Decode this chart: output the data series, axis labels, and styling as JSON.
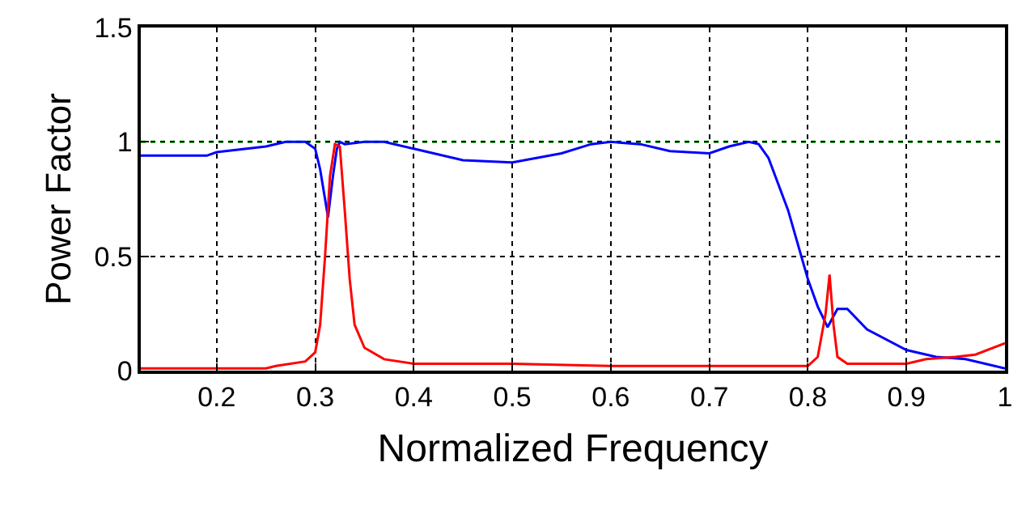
{
  "chart_data": {
    "type": "line",
    "xlabel": "Normalized Frequency",
    "ylabel": "Power Factor",
    "xlim": [
      0.123,
      1
    ],
    "xticks": [
      0.2,
      0.3,
      0.4,
      0.5,
      0.6,
      0.7,
      0.8,
      0.9,
      1
    ],
    "ylim": [
      0,
      1.5
    ],
    "yticks": [
      0,
      0.5,
      1,
      1.5
    ],
    "grid": true,
    "line_style": "solid",
    "marker": "none",
    "ref_lines": [
      {
        "axis": "y",
        "value": 1,
        "label": null,
        "color": "#00cc00",
        "line_style": "dotted"
      }
    ],
    "series": [
      {
        "color": "#0000ff",
        "x": [
          0.123,
          0.19,
          0.2,
          0.25,
          0.27,
          0.29,
          0.3,
          0.305,
          0.31,
          0.313,
          0.318,
          0.322,
          0.325,
          0.33,
          0.35,
          0.37,
          0.4,
          0.45,
          0.5,
          0.55,
          0.58,
          0.6,
          0.63,
          0.66,
          0.7,
          0.72,
          0.74,
          0.75,
          0.76,
          0.78,
          0.8,
          0.81,
          0.82,
          0.83,
          0.84,
          0.86,
          0.9,
          0.93,
          0.96,
          0.98,
          1.0
        ],
        "values": [
          0.94,
          0.94,
          0.955,
          0.98,
          1.0,
          1.0,
          0.97,
          0.88,
          0.75,
          0.67,
          0.85,
          0.97,
          1.0,
          0.99,
          1.0,
          1.0,
          0.97,
          0.92,
          0.91,
          0.95,
          0.99,
          1.0,
          0.99,
          0.96,
          0.95,
          0.98,
          1.0,
          0.99,
          0.93,
          0.7,
          0.4,
          0.28,
          0.19,
          0.27,
          0.27,
          0.18,
          0.09,
          0.06,
          0.05,
          0.03,
          0.01
        ]
      },
      {
        "color": "#ff0000",
        "x": [
          0.123,
          0.25,
          0.26,
          0.29,
          0.3,
          0.305,
          0.31,
          0.315,
          0.32,
          0.325,
          0.33,
          0.335,
          0.34,
          0.35,
          0.37,
          0.4,
          0.5,
          0.6,
          0.7,
          0.8,
          0.81,
          0.818,
          0.822,
          0.826,
          0.83,
          0.84,
          0.9,
          0.92,
          0.95,
          0.97,
          1.0
        ],
        "values": [
          0.01,
          0.01,
          0.02,
          0.04,
          0.08,
          0.2,
          0.5,
          0.85,
          0.99,
          0.98,
          0.7,
          0.4,
          0.2,
          0.1,
          0.05,
          0.03,
          0.03,
          0.02,
          0.02,
          0.02,
          0.06,
          0.25,
          0.42,
          0.2,
          0.06,
          0.03,
          0.03,
          0.05,
          0.06,
          0.07,
          0.12
        ]
      }
    ]
  }
}
